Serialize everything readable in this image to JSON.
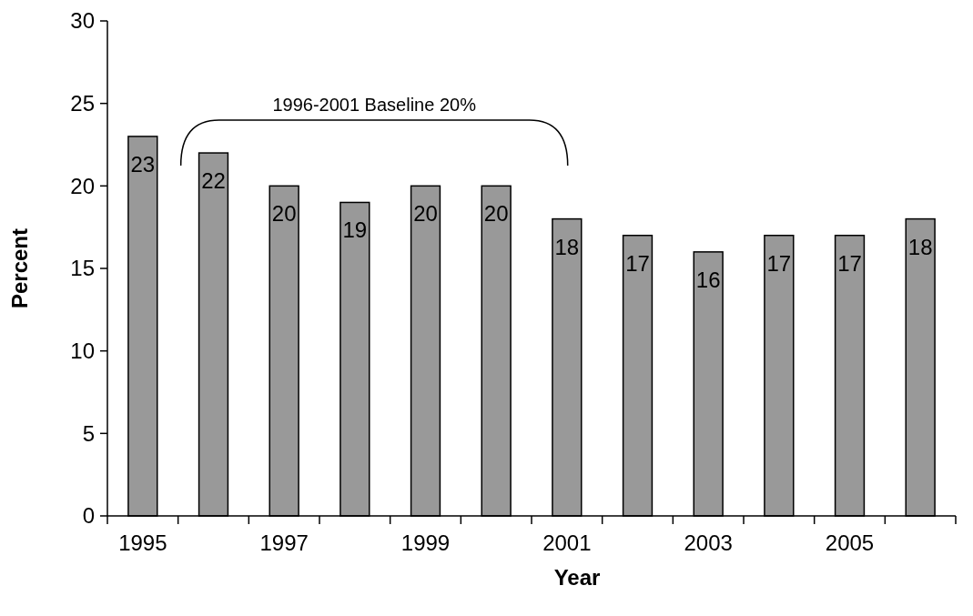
{
  "chart_data": {
    "type": "bar",
    "categories": [
      "1995",
      null,
      "1997",
      null,
      "1999",
      null,
      "2001",
      null,
      "2003",
      null,
      "2005",
      null
    ],
    "values": [
      23,
      22,
      20,
      19,
      20,
      20,
      18,
      17,
      16,
      17,
      17,
      18
    ],
    "color": "#999999",
    "xlabel": "Year",
    "ylabel": "Percent",
    "ylim": [
      0,
      30
    ],
    "yticks": [
      0,
      5,
      10,
      15,
      20,
      25,
      30
    ],
    "data_labels": true,
    "grid": false,
    "annotations": [
      "1996-2001 Baseline 20%"
    ]
  }
}
